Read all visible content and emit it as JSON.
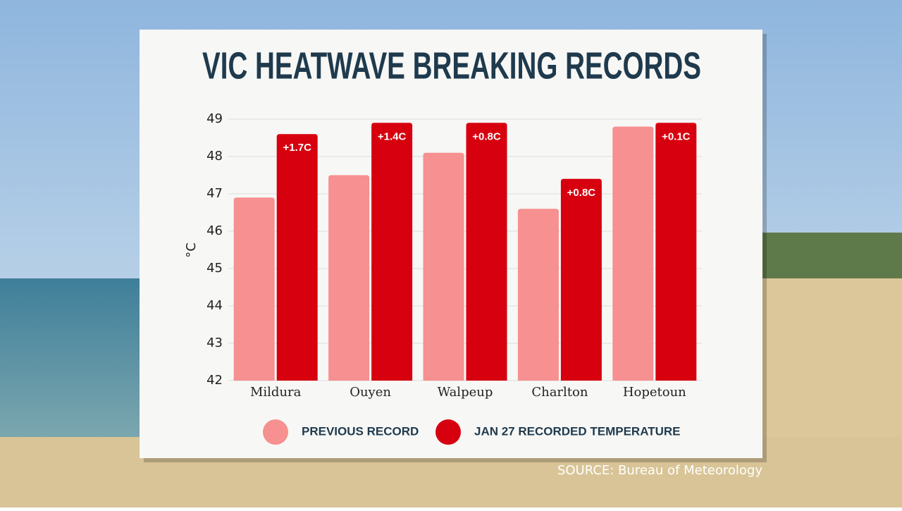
{
  "chart_data": {
    "type": "bar",
    "title": "VIC HEATWAVE BREAKING RECORDS",
    "y_label": "°C",
    "categories": [
      "Mildura",
      "Ouyen",
      "Walpeup",
      "Charlton",
      "Hopetoun"
    ],
    "series": [
      {
        "name": "PREVIOUS RECORD",
        "color": "#f79090",
        "values": [
          46.9,
          47.5,
          48.1,
          46.6,
          48.8
        ]
      },
      {
        "name": "JAN 27 RECORDED TEMPERATURE",
        "color": "#d7000f",
        "values": [
          48.6,
          48.9,
          48.9,
          47.4,
          48.9
        ]
      }
    ],
    "differences": [
      "+1.7C",
      "+1.4C",
      "+0.8C",
      "+0.8C",
      "+0.1C"
    ],
    "ylim": [
      42,
      49
    ],
    "yticks": [
      42,
      43,
      44,
      45,
      46,
      47,
      48,
      49
    ],
    "grid": true,
    "source": "SOURCE: Bureau of Meteorology"
  }
}
